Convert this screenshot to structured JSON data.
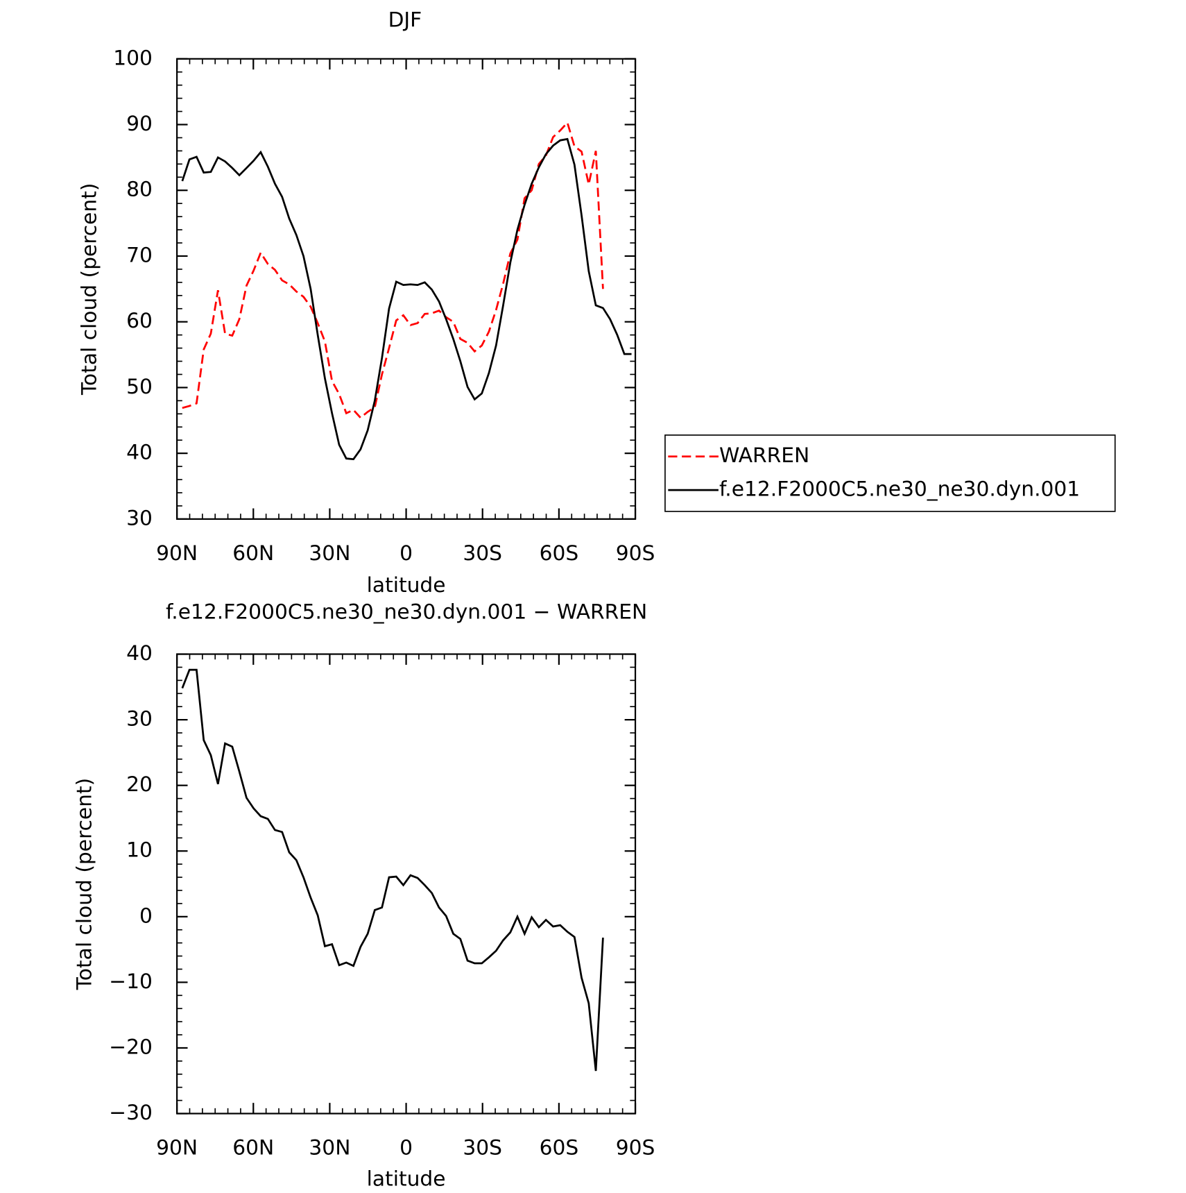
{
  "chart_data": [
    {
      "type": "line",
      "title": "DJF",
      "xlabel": "latitude",
      "ylabel": "Total cloud (percent)",
      "xlim": [
        90,
        -90
      ],
      "ylim": [
        30,
        100
      ],
      "xticks": [
        {
          "value": 90,
          "label": "90N"
        },
        {
          "value": 60,
          "label": "60N"
        },
        {
          "value": 30,
          "label": "30N"
        },
        0,
        {
          "value": -30,
          "label": "30S"
        },
        {
          "value": -60,
          "label": "60S"
        },
        {
          "value": -90,
          "label": "90S"
        }
      ],
      "yticks": [
        30,
        40,
        50,
        60,
        70,
        80,
        90,
        100
      ],
      "legend": "right",
      "x": [
        87.9,
        85.1,
        82.3,
        79.5,
        76.7,
        73.9,
        71.1,
        68.3,
        65.5,
        62.7,
        59.9,
        57.1,
        54.3,
        51.5,
        48.7,
        45.9,
        43.1,
        40.3,
        37.5,
        34.7,
        31.9,
        29.1,
        26.3,
        23.5,
        20.7,
        17.9,
        15.1,
        12.3,
        9.5,
        6.7,
        3.9,
        1.1,
        -1.7,
        -4.5,
        -7.3,
        -10.1,
        -12.9,
        -15.7,
        -18.5,
        -21.3,
        -24.1,
        -26.9,
        -29.7,
        -32.5,
        -35.3,
        -38.1,
        -40.9,
        -43.7,
        -46.5,
        -49.3,
        -52.1,
        -54.9,
        -57.7,
        -60.5,
        -63.3,
        -66.1,
        -68.9,
        -71.7,
        -74.5,
        -77.3,
        -80.1,
        -82.9,
        -85.7,
        -88.5
      ],
      "series": [
        {
          "name": "WARREN",
          "color": "#ff0000",
          "line_style": "dashed",
          "values": [
            46.9,
            47.2,
            47.6,
            55.8,
            58.2,
            64.8,
            58.2,
            57.9,
            60.4,
            65.5,
            67.8,
            70.5,
            68.8,
            67.9,
            66.3,
            65.7,
            64.6,
            63.8,
            62.3,
            59.8,
            57,
            51,
            49,
            46.1,
            46.6,
            45.4,
            46.3,
            47,
            52,
            56,
            60.2,
            61,
            59.5,
            59.8,
            61.2,
            61.3,
            61.7,
            60.7,
            60,
            57.4,
            56.8,
            55.5,
            56.4,
            58.5,
            61.8,
            65.8,
            70.4,
            72.5,
            78.8,
            80,
            84,
            85.3,
            88.1,
            89.1,
            90.3,
            86.7,
            85.9,
            80.9,
            86,
            65,
            null,
            null,
            null,
            null
          ]
        },
        {
          "name": "f.e12.F2000C5.ne30_ne30.dyn.001",
          "color": "#000000",
          "line_style": "solid",
          "values": [
            81.4,
            84.7,
            85.1,
            82.7,
            82.8,
            85,
            84.4,
            83.4,
            82.3,
            83.4,
            84.5,
            85.8,
            83.6,
            81,
            79,
            75.7,
            73.2,
            70,
            65,
            58,
            51.4,
            46.1,
            41.3,
            39.2,
            39.1,
            40.6,
            43.5,
            48,
            54.5,
            62,
            66.1,
            65.6,
            65.7,
            65.6,
            66,
            64.9,
            63.1,
            60.4,
            57.4,
            54,
            50.1,
            48.2,
            49.1,
            52.2,
            56.4,
            62.5,
            69,
            74,
            77.8,
            81,
            83.5,
            85.5,
            86.8,
            87.6,
            87.8,
            83.9,
            76.2,
            67.7,
            62.5,
            62.1,
            60.4,
            58,
            55.1,
            55.1
          ]
        }
      ]
    },
    {
      "type": "line",
      "title": "f.e12.F2000C5.ne30_ne30.dyn.001 − WARREN",
      "xlabel": "latitude",
      "ylabel": "Total cloud (percent)",
      "xlim": [
        90,
        -90
      ],
      "ylim": [
        -30,
        40
      ],
      "xticks": [
        {
          "value": 90,
          "label": "90N"
        },
        {
          "value": 60,
          "label": "60N"
        },
        {
          "value": 30,
          "label": "30N"
        },
        0,
        {
          "value": -30,
          "label": "30S"
        },
        {
          "value": -60,
          "label": "60S"
        },
        {
          "value": -90,
          "label": "90S"
        }
      ],
      "yticks": [
        {
          "value": -30,
          "label": "−30"
        },
        {
          "value": -20,
          "label": "−20"
        },
        {
          "value": -10,
          "label": "−10"
        },
        0,
        10,
        20,
        30,
        40
      ],
      "x": [
        87.9,
        85.1,
        82.3,
        79.5,
        76.7,
        73.9,
        71.1,
        68.3,
        65.5,
        62.7,
        59.9,
        57.1,
        54.3,
        51.5,
        48.7,
        45.9,
        43.1,
        40.3,
        37.5,
        34.7,
        31.9,
        29.1,
        26.3,
        23.5,
        20.7,
        17.9,
        15.1,
        12.3,
        9.5,
        6.7,
        3.9,
        1.1,
        -1.7,
        -4.5,
        -7.3,
        -10.1,
        -12.9,
        -15.7,
        -18.5,
        -21.3,
        -24.1,
        -26.9,
        -29.7,
        -32.5,
        -35.3,
        -38.1,
        -40.9,
        -43.7,
        -46.5,
        -49.3,
        -52.1,
        -54.9,
        -57.7,
        -60.5,
        -63.3,
        -66.1,
        -68.9,
        -71.7,
        -74.5,
        -77.3
      ],
      "color": "#000000",
      "values": [
        34.8,
        37.6,
        37.6,
        26.9,
        24.6,
        20.2,
        26.4,
        25.9,
        22.1,
        18.1,
        16.5,
        15.3,
        14.9,
        13.2,
        12.9,
        9.8,
        8.6,
        6,
        2.9,
        0.2,
        -4.5,
        -4.2,
        -7.4,
        -7,
        -7.5,
        -4.6,
        -2.6,
        1,
        1.4,
        6,
        6.1,
        4.8,
        6.3,
        5.9,
        4.8,
        3.6,
        1.4,
        0.1,
        -2.6,
        -3.4,
        -6.7,
        -7.1,
        -7.1,
        -6.2,
        -5.2,
        -3.6,
        -2.4,
        0,
        -2.6,
        -0.1,
        -1.6,
        -0.5,
        -1.5,
        -1.3,
        -2.3,
        -3.1,
        -9.3,
        -13.2,
        -23.5,
        -3.2
      ]
    }
  ]
}
